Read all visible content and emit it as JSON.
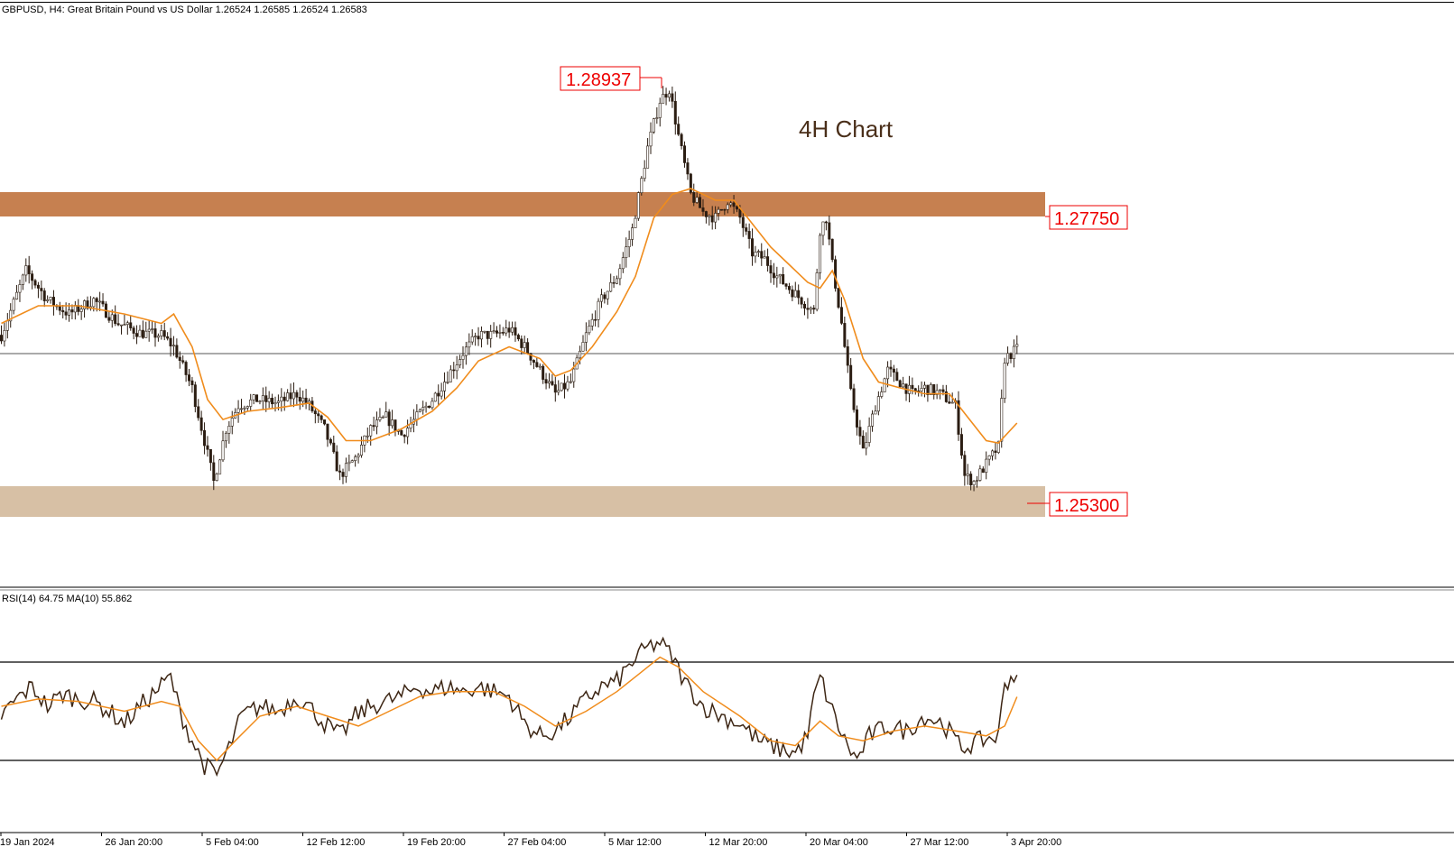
{
  "header": {
    "symbol_line": "GBPUSD, H4:  Great Britain Pound vs US Dollar  1.26524 1.26585 1.26524 1.26583"
  },
  "annotation": {
    "text": "4H Chart"
  },
  "levels": {
    "high": "1.28937",
    "resistance": "1.27750",
    "support": "1.25300"
  },
  "rsi": {
    "label": "RSI(14) 64.75 MA(10) 55.862"
  },
  "time_axis": {
    "labels": [
      "19 Jan 2024",
      "26 Jan 20:00",
      "5 Feb 04:00",
      "12 Feb 12:00",
      "19 Feb 20:00",
      "27 Feb 04:00",
      "5 Mar 12:00",
      "12 Mar 20:00",
      "20 Mar 04:00",
      "27 Mar 12:00",
      "3 Apr 20:00"
    ]
  },
  "colors": {
    "resistance_zone": "#c68050",
    "support_zone": "#d7c0a5",
    "candle": "#2b1d12",
    "moving_average": "#f08c1c",
    "rsi_line": "#3d2614",
    "rsi_ma": "#f08c1c",
    "label_red": "#ee0000",
    "grid_line": "#000000"
  },
  "chart_data": [
    {
      "type": "candlestick",
      "title": "GBPUSD, H4",
      "price_range": [
        1.2475,
        1.2925
      ],
      "current_price": 1.26583,
      "zones": [
        {
          "name": "resistance",
          "from": 1.2768,
          "to": 1.2788,
          "label": "1.27750"
        },
        {
          "name": "support",
          "from": 1.2522,
          "to": 1.2546,
          "label": "1.25300"
        }
      ],
      "annotated_high": 1.28937,
      "close_path": [
        [
          0,
          1.267
        ],
        [
          8,
          1.2725
        ],
        [
          15,
          1.27
        ],
        [
          22,
          1.2688
        ],
        [
          30,
          1.27
        ],
        [
          38,
          1.268
        ],
        [
          45,
          1.2672
        ],
        [
          52,
          1.267
        ],
        [
          56,
          1.266
        ],
        [
          62,
          1.2625
        ],
        [
          66,
          1.258
        ],
        [
          69,
          1.2545
        ],
        [
          73,
          1.259
        ],
        [
          77,
          1.261
        ],
        [
          83,
          1.2615
        ],
        [
          90,
          1.2612
        ],
        [
          96,
          1.262
        ],
        [
          100,
          1.261
        ],
        [
          105,
          1.259
        ],
        [
          110,
          1.255
        ],
        [
          115,
          1.2565
        ],
        [
          120,
          1.259
        ],
        [
          125,
          1.26
        ],
        [
          130,
          1.2585
        ],
        [
          135,
          1.26
        ],
        [
          140,
          1.2615
        ],
        [
          145,
          1.2635
        ],
        [
          150,
          1.2655
        ],
        [
          155,
          1.267
        ],
        [
          160,
          1.267
        ],
        [
          165,
          1.2675
        ],
        [
          170,
          1.266
        ],
        [
          175,
          1.264
        ],
        [
          180,
          1.262
        ],
        [
          185,
          1.263
        ],
        [
          190,
          1.267
        ],
        [
          195,
          1.27
        ],
        [
          200,
          1.272
        ],
        [
          205,
          1.276
        ],
        [
          210,
          1.283
        ],
        [
          214,
          1.287
        ],
        [
          217,
          1.288
        ],
        [
          220,
          1.284
        ],
        [
          224,
          1.279
        ],
        [
          228,
          1.2775
        ],
        [
          232,
          1.277
        ],
        [
          236,
          1.2785
        ],
        [
          240,
          1.277
        ],
        [
          244,
          1.274
        ],
        [
          248,
          1.2735
        ],
        [
          252,
          1.272
        ],
        [
          256,
          1.271
        ],
        [
          260,
          1.27
        ],
        [
          264,
          1.269
        ],
        [
          266,
          1.276
        ],
        [
          268,
          1.277
        ],
        [
          270,
          1.273
        ],
        [
          273,
          1.268
        ],
        [
          276,
          1.262
        ],
        [
          280,
          1.257
        ],
        [
          284,
          1.261
        ],
        [
          288,
          1.264
        ],
        [
          292,
          1.263
        ],
        [
          296,
          1.262
        ],
        [
          300,
          1.2625
        ],
        [
          305,
          1.262
        ],
        [
          310,
          1.261
        ],
        [
          313,
          1.255
        ],
        [
          316,
          1.2545
        ],
        [
          320,
          1.256
        ],
        [
          324,
          1.2575
        ],
        [
          326,
          1.265
        ],
        [
          330,
          1.2658
        ]
      ],
      "moving_average_path": [
        [
          0,
          1.268
        ],
        [
          12,
          1.2695
        ],
        [
          25,
          1.2695
        ],
        [
          40,
          1.2688
        ],
        [
          52,
          1.268
        ],
        [
          56,
          1.2688
        ],
        [
          62,
          1.266
        ],
        [
          67,
          1.2615
        ],
        [
          72,
          1.2598
        ],
        [
          80,
          1.2605
        ],
        [
          90,
          1.2608
        ],
        [
          100,
          1.2612
        ],
        [
          106,
          1.26
        ],
        [
          112,
          1.258
        ],
        [
          120,
          1.258
        ],
        [
          130,
          1.259
        ],
        [
          140,
          1.2605
        ],
        [
          148,
          1.2625
        ],
        [
          155,
          1.2648
        ],
        [
          165,
          1.266
        ],
        [
          175,
          1.265
        ],
        [
          180,
          1.2635
        ],
        [
          185,
          1.264
        ],
        [
          192,
          1.266
        ],
        [
          200,
          1.269
        ],
        [
          206,
          1.272
        ],
        [
          212,
          1.277
        ],
        [
          218,
          1.279
        ],
        [
          224,
          1.2795
        ],
        [
          232,
          1.2785
        ],
        [
          238,
          1.2785
        ],
        [
          244,
          1.2765
        ],
        [
          250,
          1.2745
        ],
        [
          256,
          1.273
        ],
        [
          262,
          1.2715
        ],
        [
          266,
          1.271
        ],
        [
          270,
          1.2725
        ],
        [
          274,
          1.27
        ],
        [
          280,
          1.265
        ],
        [
          285,
          1.263
        ],
        [
          292,
          1.2625
        ],
        [
          300,
          1.262
        ],
        [
          308,
          1.262
        ],
        [
          314,
          1.26
        ],
        [
          320,
          1.258
        ],
        [
          324,
          1.2578
        ],
        [
          330,
          1.2595
        ]
      ]
    },
    {
      "type": "line",
      "title": "RSI(14) 64.75 MA(10) 55.862",
      "ylim": [
        0,
        100
      ],
      "levels": [
        70,
        30
      ],
      "series": [
        {
          "name": "RSI(14)",
          "points": [
            [
              0,
              48
            ],
            [
              5,
              55
            ],
            [
              10,
              60
            ],
            [
              15,
              52
            ],
            [
              20,
              57
            ],
            [
              25,
              55
            ],
            [
              30,
              54
            ],
            [
              35,
              50
            ],
            [
              40,
              45
            ],
            [
              45,
              52
            ],
            [
              50,
              58
            ],
            [
              55,
              64
            ],
            [
              58,
              50
            ],
            [
              62,
              38
            ],
            [
              66,
              28
            ],
            [
              70,
              24
            ],
            [
              74,
              35
            ],
            [
              78,
              48
            ],
            [
              84,
              52
            ],
            [
              90,
              50
            ],
            [
              96,
              56
            ],
            [
              100,
              52
            ],
            [
              105,
              45
            ],
            [
              110,
              40
            ],
            [
              115,
              48
            ],
            [
              120,
              52
            ],
            [
              125,
              54
            ],
            [
              130,
              56
            ],
            [
              135,
              60
            ],
            [
              140,
              58
            ],
            [
              145,
              60
            ],
            [
              150,
              58
            ],
            [
              155,
              60
            ],
            [
              160,
              58
            ],
            [
              165,
              56
            ],
            [
              170,
              45
            ],
            [
              175,
              40
            ],
            [
              180,
              42
            ],
            [
              185,
              48
            ],
            [
              190,
              55
            ],
            [
              195,
              60
            ],
            [
              200,
              62
            ],
            [
              205,
              70
            ],
            [
              210,
              76
            ],
            [
              214,
              78
            ],
            [
              218,
              72
            ],
            [
              222,
              62
            ],
            [
              228,
              52
            ],
            [
              234,
              48
            ],
            [
              240,
              45
            ],
            [
              246,
              38
            ],
            [
              252,
              35
            ],
            [
              258,
              33
            ],
            [
              262,
              40
            ],
            [
              264,
              55
            ],
            [
              266,
              64
            ],
            [
              270,
              50
            ],
            [
              274,
              38
            ],
            [
              278,
              30
            ],
            [
              282,
              40
            ],
            [
              288,
              44
            ],
            [
              294,
              42
            ],
            [
              300,
              48
            ],
            [
              306,
              45
            ],
            [
              312,
              35
            ],
            [
              318,
              38
            ],
            [
              324,
              40
            ],
            [
              326,
              62
            ],
            [
              330,
              64.75
            ]
          ]
        },
        {
          "name": "MA(10)",
          "points": [
            [
              0,
              52
            ],
            [
              12,
              55
            ],
            [
              25,
              54
            ],
            [
              40,
              50
            ],
            [
              52,
              54
            ],
            [
              58,
              52
            ],
            [
              64,
              38
            ],
            [
              70,
              30
            ],
            [
              76,
              38
            ],
            [
              84,
              48
            ],
            [
              96,
              52
            ],
            [
              106,
              48
            ],
            [
              116,
              44
            ],
            [
              126,
              50
            ],
            [
              136,
              56
            ],
            [
              146,
              58
            ],
            [
              160,
              58
            ],
            [
              170,
              52
            ],
            [
              180,
              44
            ],
            [
              190,
              50
            ],
            [
              200,
              58
            ],
            [
              208,
              66
            ],
            [
              214,
              72
            ],
            [
              220,
              68
            ],
            [
              228,
              58
            ],
            [
              240,
              48
            ],
            [
              250,
              38
            ],
            [
              258,
              36
            ],
            [
              266,
              46
            ],
            [
              272,
              40
            ],
            [
              280,
              38
            ],
            [
              290,
              42
            ],
            [
              300,
              44
            ],
            [
              310,
              42
            ],
            [
              320,
              40
            ],
            [
              326,
              44
            ],
            [
              330,
              55.862
            ]
          ]
        }
      ]
    }
  ]
}
